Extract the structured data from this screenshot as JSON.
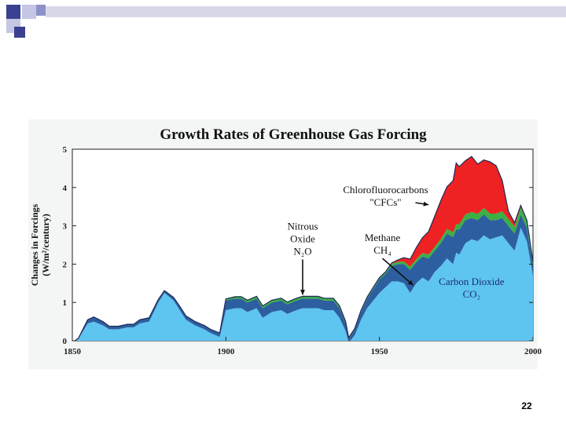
{
  "slide": {
    "page_number": "22"
  },
  "colors": {
    "co2": "#5ec4f0",
    "methane": "#2d5fa0",
    "n2o": "#3cb043",
    "cfc": "#ee2222",
    "outline": "#1b2a55",
    "deco_dark": "#3a4190",
    "deco_mid": "#8d91c8",
    "deco_light": "#c4c6e4",
    "deco_band": "#d8d9e8"
  },
  "chart_data": {
    "type": "area",
    "stacked": true,
    "title": "Growth Rates of Greenhouse Gas Forcing",
    "xlabel": "",
    "ylabel_line1": "Changes in Forcings",
    "ylabel_line2": "(W/m²/century)",
    "xlim": [
      1850,
      2000
    ],
    "ylim": [
      0,
      5
    ],
    "x_ticks": [
      1850,
      1900,
      1950,
      2000
    ],
    "y_ticks": [
      0,
      1,
      2,
      3,
      4,
      5
    ],
    "x": [
      1850,
      1852,
      1855,
      1857,
      1860,
      1862,
      1865,
      1868,
      1870,
      1872,
      1875,
      1878,
      1880,
      1883,
      1885,
      1887,
      1890,
      1893,
      1895,
      1898,
      1900,
      1903,
      1905,
      1907,
      1910,
      1912,
      1915,
      1918,
      1920,
      1923,
      1925,
      1928,
      1930,
      1932,
      1935,
      1937,
      1939,
      1940,
      1942,
      1944,
      1946,
      1948,
      1950,
      1952,
      1954,
      1956,
      1958,
      1960,
      1962,
      1964,
      1966,
      1968,
      1970,
      1972,
      1974,
      1975,
      1976,
      1978,
      1980,
      1982,
      1984,
      1986,
      1988,
      1990,
      1992,
      1994,
      1996,
      1998,
      2000
    ],
    "series": [
      {
        "name": "Carbon Dioxide CO₂",
        "values": [
          -0.05,
          0.05,
          0.45,
          0.5,
          0.4,
          0.3,
          0.3,
          0.35,
          0.35,
          0.45,
          0.5,
          1.0,
          1.25,
          1.05,
          0.8,
          0.55,
          0.4,
          0.3,
          0.2,
          0.1,
          0.8,
          0.85,
          0.85,
          0.75,
          0.85,
          0.6,
          0.75,
          0.8,
          0.7,
          0.8,
          0.85,
          0.85,
          0.85,
          0.8,
          0.8,
          0.6,
          0.25,
          -0.05,
          0.15,
          0.55,
          0.85,
          1.05,
          1.25,
          1.4,
          1.55,
          1.55,
          1.5,
          1.25,
          1.5,
          1.65,
          1.55,
          1.8,
          1.95,
          2.15,
          2.0,
          2.3,
          2.25,
          2.55,
          2.65,
          2.6,
          2.75,
          2.65,
          2.7,
          2.75,
          2.55,
          2.35,
          2.95,
          2.6,
          1.7
        ]
      },
      {
        "name": "Methane CH₄",
        "values": [
          0.0,
          0.02,
          0.1,
          0.12,
          0.1,
          0.08,
          0.08,
          0.08,
          0.08,
          0.1,
          0.1,
          0.08,
          0.06,
          0.08,
          0.1,
          0.1,
          0.1,
          0.1,
          0.1,
          0.1,
          0.25,
          0.25,
          0.25,
          0.25,
          0.25,
          0.25,
          0.25,
          0.25,
          0.25,
          0.25,
          0.25,
          0.25,
          0.25,
          0.25,
          0.25,
          0.25,
          0.2,
          0.1,
          0.15,
          0.2,
          0.25,
          0.3,
          0.35,
          0.35,
          0.4,
          0.45,
          0.5,
          0.6,
          0.55,
          0.55,
          0.6,
          0.55,
          0.6,
          0.65,
          0.7,
          0.6,
          0.65,
          0.6,
          0.55,
          0.55,
          0.55,
          0.5,
          0.45,
          0.45,
          0.45,
          0.45,
          0.35,
          0.35,
          0.25
        ]
      },
      {
        "name": "Nitrous Oxide N₂O",
        "values": [
          0.0,
          0.0,
          0.0,
          0.0,
          0.0,
          0.0,
          0.0,
          0.0,
          0.0,
          0.0,
          0.0,
          0.0,
          0.0,
          0.0,
          0.0,
          0.0,
          0.0,
          0.0,
          0.0,
          0.0,
          0.04,
          0.05,
          0.05,
          0.06,
          0.06,
          0.06,
          0.06,
          0.06,
          0.06,
          0.06,
          0.06,
          0.06,
          0.06,
          0.06,
          0.06,
          0.06,
          0.05,
          0.03,
          0.03,
          0.04,
          0.04,
          0.05,
          0.05,
          0.05,
          0.06,
          0.06,
          0.07,
          0.08,
          0.08,
          0.09,
          0.1,
          0.1,
          0.11,
          0.12,
          0.13,
          0.14,
          0.14,
          0.15,
          0.16,
          0.16,
          0.17,
          0.17,
          0.17,
          0.18,
          0.18,
          0.18,
          0.18,
          0.18,
          0.1
        ]
      },
      {
        "name": "Chlorofluorocarbons \"CFCs\"",
        "values": [
          0,
          0,
          0,
          0,
          0,
          0,
          0,
          0,
          0,
          0,
          0,
          0,
          0,
          0,
          0,
          0,
          0,
          0,
          0,
          0,
          0,
          0,
          0,
          0,
          0,
          0,
          0,
          0,
          0,
          0,
          0,
          0,
          0,
          0,
          0,
          0,
          0,
          0,
          0,
          0,
          0,
          0,
          0,
          0,
          0.02,
          0.05,
          0.1,
          0.2,
          0.3,
          0.4,
          0.6,
          0.8,
          1.0,
          1.1,
          1.35,
          1.6,
          1.5,
          1.4,
          1.45,
          1.3,
          1.25,
          1.35,
          1.25,
          0.8,
          0.2,
          0.1,
          0.05,
          0.02,
          0.0
        ]
      }
    ],
    "annotations": [
      {
        "id": "n2o",
        "lines": [
          "Nitrous",
          "Oxide",
          "N₂O"
        ],
        "x": 1925,
        "y": 2.9,
        "arrow_to": [
          1925,
          1.2
        ]
      },
      {
        "id": "methane",
        "lines": [
          "Methane",
          "CH₄"
        ],
        "x": 1951,
        "y": 2.6,
        "arrow_to": [
          1961,
          1.45
        ]
      },
      {
        "id": "cfc",
        "lines": [
          "Chlorofluorocarbons",
          "\"CFCs\""
        ],
        "x": 1952,
        "y": 3.85,
        "arrow_to": [
          1966,
          3.55
        ]
      },
      {
        "id": "co2",
        "lines": [
          "Carbon Dioxide",
          "CO₂"
        ],
        "x": 1980,
        "y": 1.45,
        "arrow_to": null
      }
    ]
  }
}
